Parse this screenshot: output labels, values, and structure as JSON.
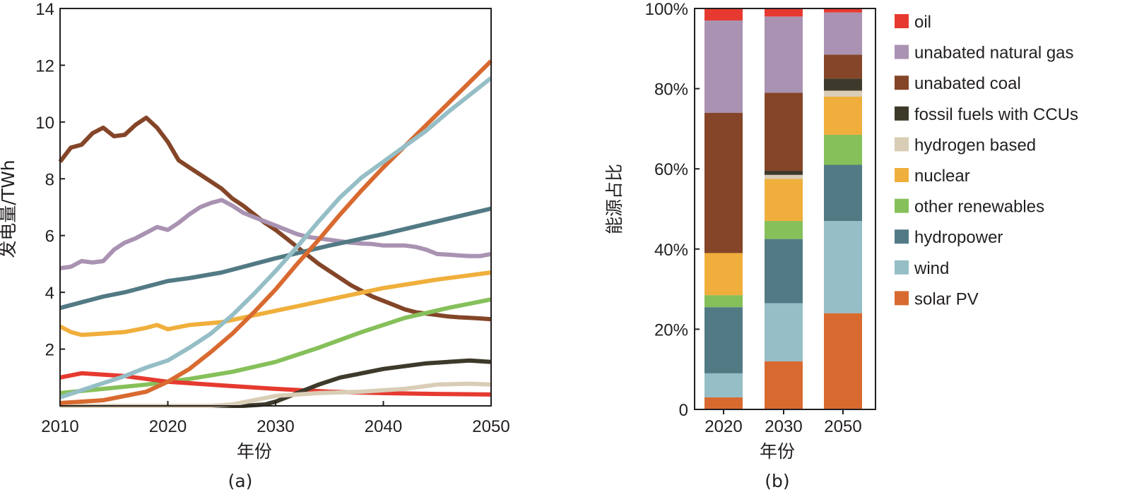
{
  "chart_data": [
    {
      "type": "line",
      "panel_label": "(a)",
      "xlabel": "年份",
      "ylabel": "发电量/TWh",
      "xlim": [
        2010,
        2050
      ],
      "ylim": [
        0,
        14
      ],
      "x_ticks": [
        "2010",
        "2020",
        "2030",
        "2040",
        "2050"
      ],
      "y_ticks": [
        "2",
        "4",
        "6",
        "8",
        "10",
        "12",
        "14"
      ],
      "series": [
        {
          "name": "unabated coal",
          "color": "#844528",
          "points": [
            [
              2010,
              8.6
            ],
            [
              2011,
              9.1
            ],
            [
              2012,
              9.2
            ],
            [
              2013,
              9.6
            ],
            [
              2014,
              9.8
            ],
            [
              2015,
              9.5
            ],
            [
              2016,
              9.55
            ],
            [
              2017,
              9.9
            ],
            [
              2018,
              10.15
            ],
            [
              2019,
              9.8
            ],
            [
              2020,
              9.3
            ],
            [
              2021,
              8.65
            ],
            [
              2022,
              8.4
            ],
            [
              2023,
              8.15
            ],
            [
              2024,
              7.9
            ],
            [
              2025,
              7.65
            ],
            [
              2026,
              7.3
            ],
            [
              2027,
              7.05
            ],
            [
              2028,
              6.75
            ],
            [
              2029,
              6.45
            ],
            [
              2030,
              6.2
            ],
            [
              2031,
              5.9
            ],
            [
              2032,
              5.6
            ],
            [
              2033,
              5.3
            ],
            [
              2034,
              5.0
            ],
            [
              2035,
              4.75
            ],
            [
              2036,
              4.5
            ],
            [
              2037,
              4.25
            ],
            [
              2038,
              4.05
            ],
            [
              2039,
              3.85
            ],
            [
              2040,
              3.7
            ],
            [
              2041,
              3.55
            ],
            [
              2042,
              3.4
            ],
            [
              2043,
              3.3
            ],
            [
              2044,
              3.25
            ],
            [
              2045,
              3.2
            ],
            [
              2046,
              3.15
            ],
            [
              2047,
              3.12
            ],
            [
              2048,
              3.1
            ],
            [
              2049,
              3.08
            ],
            [
              2050,
              3.05
            ]
          ]
        },
        {
          "name": "unabated natural gas",
          "color": "#a992b2",
          "points": [
            [
              2010,
              4.85
            ],
            [
              2011,
              4.9
            ],
            [
              2012,
              5.1
            ],
            [
              2013,
              5.05
            ],
            [
              2014,
              5.1
            ],
            [
              2015,
              5.5
            ],
            [
              2016,
              5.75
            ],
            [
              2017,
              5.9
            ],
            [
              2018,
              6.1
            ],
            [
              2019,
              6.3
            ],
            [
              2020,
              6.2
            ],
            [
              2021,
              6.45
            ],
            [
              2022,
              6.75
            ],
            [
              2023,
              7.0
            ],
            [
              2024,
              7.15
            ],
            [
              2025,
              7.25
            ],
            [
              2026,
              7.05
            ],
            [
              2027,
              6.8
            ],
            [
              2028,
              6.65
            ],
            [
              2029,
              6.5
            ],
            [
              2030,
              6.35
            ],
            [
              2031,
              6.2
            ],
            [
              2032,
              6.05
            ],
            [
              2033,
              5.95
            ],
            [
              2034,
              5.9
            ],
            [
              2035,
              5.85
            ],
            [
              2036,
              5.8
            ],
            [
              2037,
              5.75
            ],
            [
              2038,
              5.72
            ],
            [
              2039,
              5.7
            ],
            [
              2040,
              5.65
            ],
            [
              2041,
              5.65
            ],
            [
              2042,
              5.65
            ],
            [
              2043,
              5.6
            ],
            [
              2044,
              5.5
            ],
            [
              2045,
              5.35
            ],
            [
              2046,
              5.33
            ],
            [
              2047,
              5.3
            ],
            [
              2048,
              5.28
            ],
            [
              2049,
              5.28
            ],
            [
              2050,
              5.35
            ]
          ]
        },
        {
          "name": "hydropower",
          "color": "#527a85",
          "points": [
            [
              2010,
              3.45
            ],
            [
              2012,
              3.65
            ],
            [
              2014,
              3.85
            ],
            [
              2016,
              4.0
            ],
            [
              2018,
              4.2
            ],
            [
              2020,
              4.4
            ],
            [
              2022,
              4.5
            ],
            [
              2025,
              4.7
            ],
            [
              2030,
              5.2
            ],
            [
              2035,
              5.65
            ],
            [
              2040,
              6.05
            ],
            [
              2045,
              6.5
            ],
            [
              2050,
              6.95
            ]
          ]
        },
        {
          "name": "nuclear",
          "color": "#f0af3c",
          "points": [
            [
              2010,
              2.8
            ],
            [
              2011,
              2.6
            ],
            [
              2012,
              2.5
            ],
            [
              2014,
              2.55
            ],
            [
              2016,
              2.6
            ],
            [
              2018,
              2.75
            ],
            [
              2019,
              2.85
            ],
            [
              2020,
              2.7
            ],
            [
              2022,
              2.85
            ],
            [
              2025,
              2.95
            ],
            [
              2030,
              3.35
            ],
            [
              2035,
              3.75
            ],
            [
              2040,
              4.15
            ],
            [
              2045,
              4.45
            ],
            [
              2050,
              4.7
            ]
          ]
        },
        {
          "name": "other renewables",
          "color": "#86c05a",
          "points": [
            [
              2010,
              0.45
            ],
            [
              2014,
              0.6
            ],
            [
              2018,
              0.75
            ],
            [
              2022,
              0.95
            ],
            [
              2026,
              1.2
            ],
            [
              2030,
              1.55
            ],
            [
              2034,
              2.05
            ],
            [
              2038,
              2.6
            ],
            [
              2042,
              3.1
            ],
            [
              2046,
              3.45
            ],
            [
              2050,
              3.75
            ]
          ]
        },
        {
          "name": "oil",
          "color": "#e63a30",
          "points": [
            [
              2010,
              1.0
            ],
            [
              2012,
              1.15
            ],
            [
              2014,
              1.1
            ],
            [
              2016,
              1.05
            ],
            [
              2018,
              0.95
            ],
            [
              2020,
              0.85
            ],
            [
              2025,
              0.72
            ],
            [
              2030,
              0.6
            ],
            [
              2035,
              0.5
            ],
            [
              2040,
              0.45
            ],
            [
              2045,
              0.42
            ],
            [
              2050,
              0.4
            ]
          ]
        },
        {
          "name": "fossil fuels with CCUs",
          "color": "#3e3a2b",
          "points": [
            [
              2010,
              0.0
            ],
            [
              2027,
              0.0
            ],
            [
              2029,
              0.05
            ],
            [
              2030,
              0.15
            ],
            [
              2032,
              0.45
            ],
            [
              2034,
              0.75
            ],
            [
              2036,
              1.0
            ],
            [
              2038,
              1.15
            ],
            [
              2040,
              1.3
            ],
            [
              2042,
              1.4
            ],
            [
              2044,
              1.5
            ],
            [
              2046,
              1.55
            ],
            [
              2048,
              1.6
            ],
            [
              2050,
              1.55
            ]
          ]
        },
        {
          "name": "hydrogen based",
          "color": "#d9cdb6",
          "points": [
            [
              2010,
              0.0
            ],
            [
              2024,
              0.0
            ],
            [
              2026,
              0.05
            ],
            [
              2028,
              0.2
            ],
            [
              2030,
              0.35
            ],
            [
              2034,
              0.45
            ],
            [
              2038,
              0.5
            ],
            [
              2042,
              0.6
            ],
            [
              2045,
              0.75
            ],
            [
              2048,
              0.78
            ],
            [
              2050,
              0.75
            ]
          ]
        },
        {
          "name": "solar PV",
          "color": "#d86a30",
          "points": [
            [
              2010,
              0.1
            ],
            [
              2014,
              0.2
            ],
            [
              2018,
              0.5
            ],
            [
              2020,
              0.85
            ],
            [
              2022,
              1.3
            ],
            [
              2024,
              1.9
            ],
            [
              2026,
              2.55
            ],
            [
              2028,
              3.3
            ],
            [
              2030,
              4.1
            ],
            [
              2032,
              5.0
            ],
            [
              2034,
              5.85
            ],
            [
              2036,
              6.75
            ],
            [
              2038,
              7.6
            ],
            [
              2040,
              8.4
            ],
            [
              2042,
              9.15
            ],
            [
              2044,
              9.9
            ],
            [
              2046,
              10.65
            ],
            [
              2048,
              11.4
            ],
            [
              2050,
              12.15
            ]
          ]
        },
        {
          "name": "wind",
          "color": "#95bec6",
          "points": [
            [
              2010,
              0.3
            ],
            [
              2012,
              0.55
            ],
            [
              2014,
              0.8
            ],
            [
              2016,
              1.05
            ],
            [
              2018,
              1.35
            ],
            [
              2020,
              1.6
            ],
            [
              2022,
              2.05
            ],
            [
              2024,
              2.55
            ],
            [
              2026,
              3.2
            ],
            [
              2028,
              3.95
            ],
            [
              2030,
              4.75
            ],
            [
              2032,
              5.6
            ],
            [
              2034,
              6.5
            ],
            [
              2036,
              7.35
            ],
            [
              2038,
              8.05
            ],
            [
              2040,
              8.6
            ],
            [
              2042,
              9.15
            ],
            [
              2044,
              9.7
            ],
            [
              2046,
              10.35
            ],
            [
              2048,
              10.95
            ],
            [
              2050,
              11.55
            ]
          ]
        }
      ]
    },
    {
      "type": "bar",
      "stacked": true,
      "panel_label": "(b)",
      "xlabel": "年份",
      "ylabel": "能源占比",
      "ylim": [
        0,
        100
      ],
      "y_ticks": [
        "0",
        "20%",
        "40%",
        "60%",
        "80%",
        "100%"
      ],
      "categories": [
        "2020",
        "2030",
        "2050"
      ],
      "legend_position": "right",
      "series": [
        {
          "name": "solar PV",
          "color": "#d86a30",
          "values": [
            3,
            12,
            24
          ]
        },
        {
          "name": "wind",
          "color": "#95bec6",
          "values": [
            6,
            14.5,
            23
          ]
        },
        {
          "name": "hydropower",
          "color": "#527a85",
          "values": [
            16.5,
            16,
            14
          ]
        },
        {
          "name": "other renewables",
          "color": "#86c05a",
          "values": [
            3,
            4.5,
            7.5
          ]
        },
        {
          "name": "nuclear",
          "color": "#f0af3c",
          "values": [
            10.5,
            10.5,
            9.5
          ]
        },
        {
          "name": "hydrogen based",
          "color": "#d9cdb6",
          "values": [
            0,
            1,
            1.5
          ]
        },
        {
          "name": "fossil fuels with CCUs",
          "color": "#3e3a2b",
          "values": [
            0,
            1,
            3
          ]
        },
        {
          "name": "unabated coal",
          "color": "#844528",
          "values": [
            35,
            19.5,
            6
          ]
        },
        {
          "name": "unabated natural gas",
          "color": "#a992b2",
          "values": [
            23,
            19,
            10.5
          ]
        },
        {
          "name": "oil",
          "color": "#e63a30",
          "values": [
            3,
            2,
            1
          ]
        }
      ],
      "legend_order": [
        "oil",
        "unabated natural gas",
        "unabated coal",
        "fossil fuels with CCUs",
        "hydrogen based",
        "nuclear",
        "other renewables",
        "hydropower",
        "wind",
        "solar PV"
      ]
    }
  ]
}
